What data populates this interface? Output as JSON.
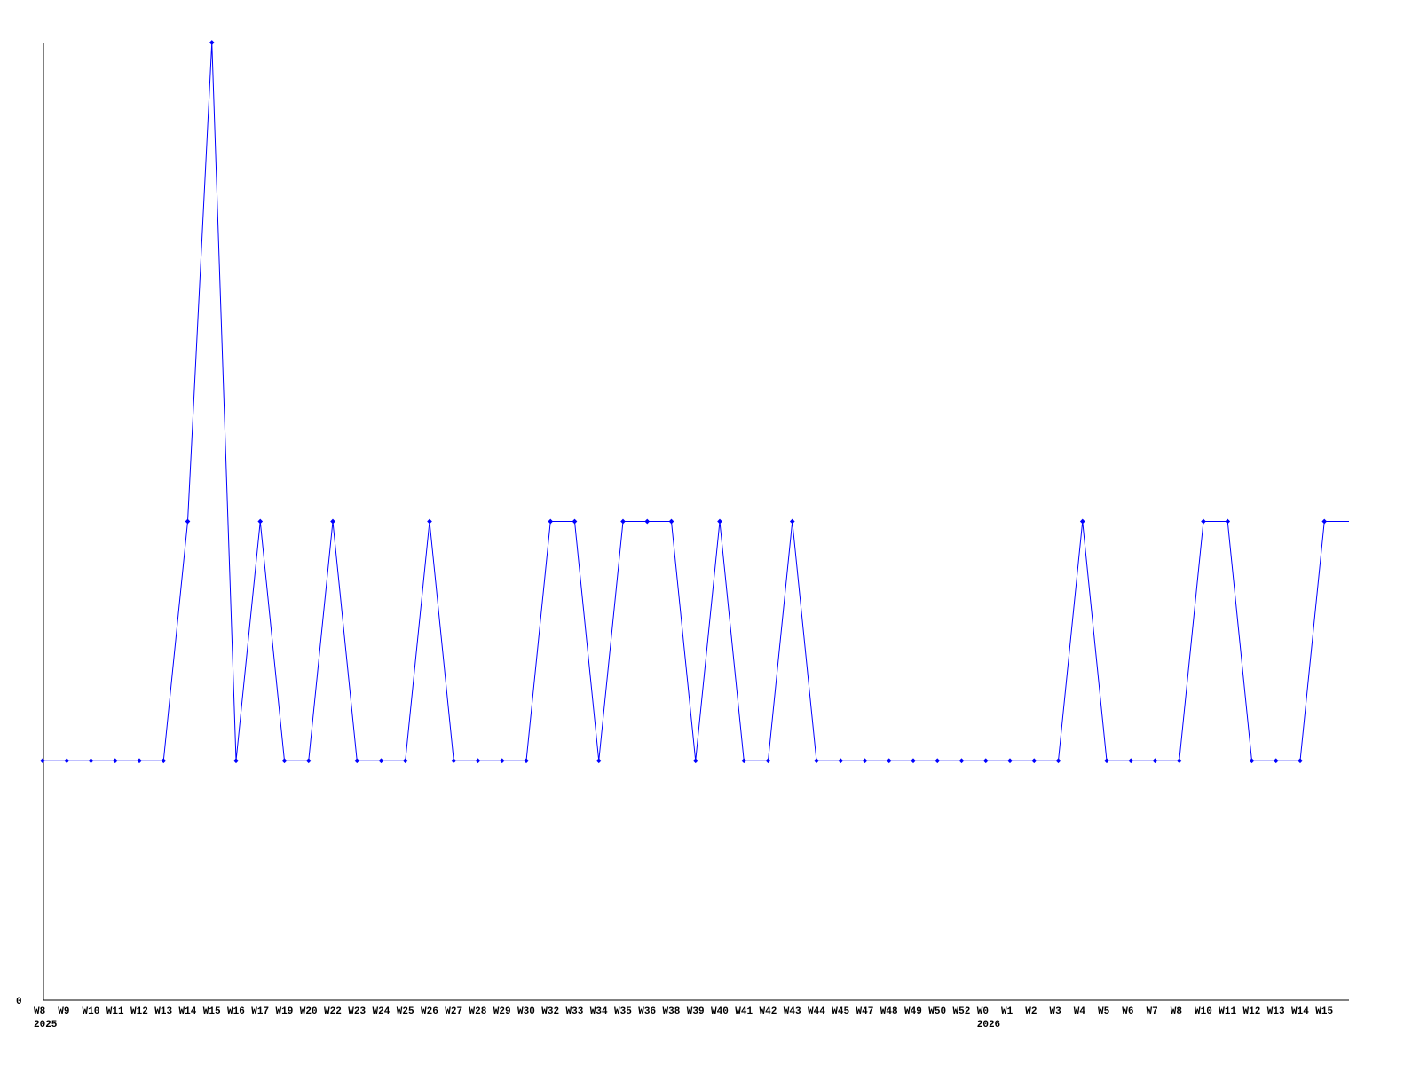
{
  "chart_data": {
    "type": "line",
    "title": "",
    "xlabel": "",
    "ylabel": "",
    "ylim": [
      0,
      4
    ],
    "y_ticks": [
      "0"
    ],
    "grid": false,
    "line_color": "#0000ff",
    "categories": [
      "W8",
      "W9",
      "W10",
      "W11",
      "W12",
      "W13",
      "W14",
      "W15",
      "W16",
      "W17",
      "W19",
      "W20",
      "W22",
      "W23",
      "W24",
      "W25",
      "W26",
      "W27",
      "W28",
      "W29",
      "W30",
      "W32",
      "W33",
      "W34",
      "W35",
      "W36",
      "W38",
      "W39",
      "W40",
      "W41",
      "W42",
      "W43",
      "W44",
      "W45",
      "W47",
      "W48",
      "W49",
      "W50",
      "W52",
      "W0",
      "W1",
      "W2",
      "W3",
      "W4",
      "W5",
      "W6",
      "W7",
      "W8",
      "W10",
      "W11",
      "W12",
      "W13",
      "W14",
      "W15"
    ],
    "year_labels": [
      {
        "label": "2025",
        "category_index": 0
      },
      {
        "label": "2026",
        "category_index": 39
      }
    ],
    "values": [
      1,
      1,
      1,
      1,
      1,
      1,
      2,
      4,
      1,
      2,
      1,
      1,
      2,
      1,
      1,
      1,
      2,
      1,
      1,
      1,
      1,
      2,
      2,
      1,
      2,
      2,
      2,
      1,
      2,
      1,
      1,
      2,
      1,
      1,
      1,
      1,
      1,
      1,
      1,
      1,
      1,
      1,
      1,
      2,
      1,
      1,
      1,
      1,
      2,
      2,
      1,
      1,
      1,
      2
    ],
    "trailing_value": 2
  }
}
